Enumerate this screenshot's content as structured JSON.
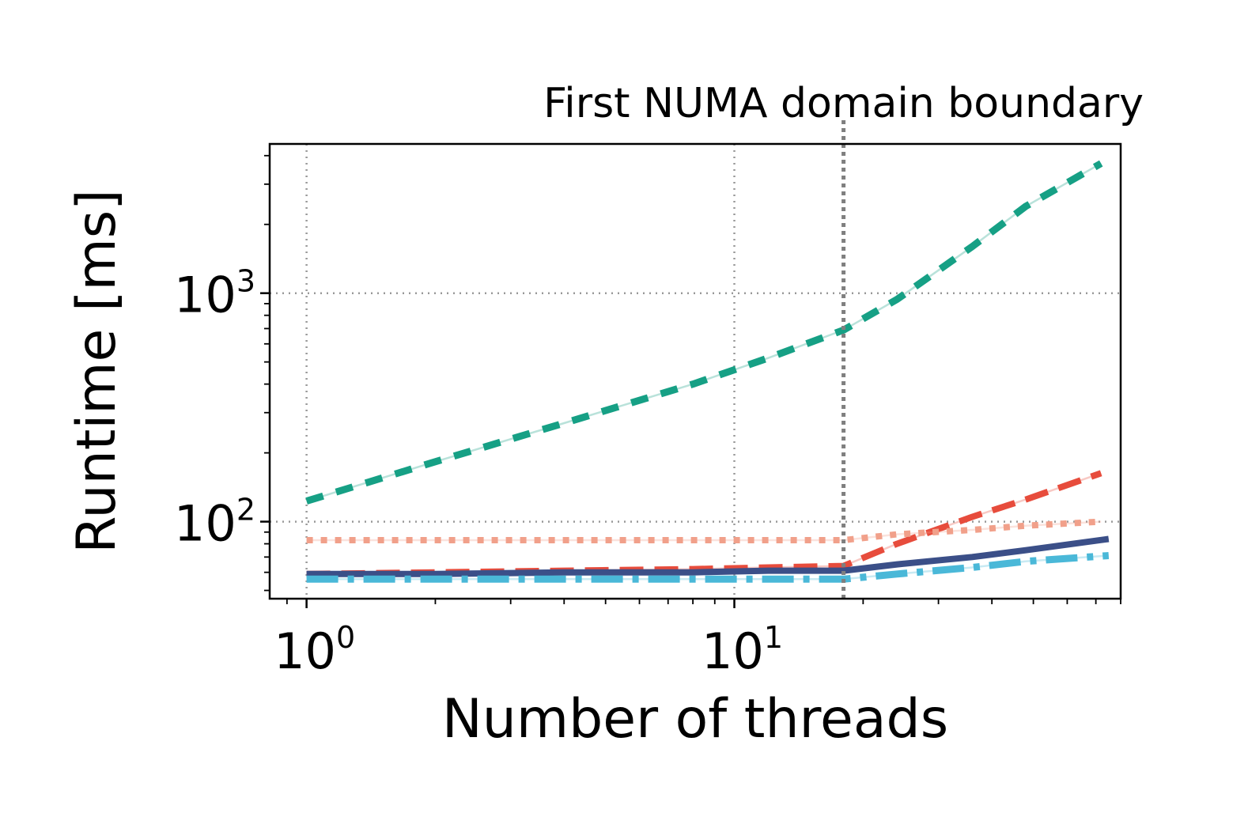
{
  "chart_data": {
    "type": "line",
    "title": "",
    "xlabel": "Number of threads",
    "ylabel": "Runtime [ms]",
    "x_scale": "log",
    "y_scale": "log",
    "xlim": [
      0.82,
      80
    ],
    "ylim": [
      46,
      4500
    ],
    "grid": true,
    "x_ticks": [
      {
        "base": "10",
        "exp": "0",
        "value": 1
      },
      {
        "base": "10",
        "exp": "1",
        "value": 10
      }
    ],
    "y_ticks": [
      {
        "base": "10",
        "exp": "2",
        "value": 100
      },
      {
        "base": "10",
        "exp": "3",
        "value": 1000
      }
    ],
    "annotation": {
      "text": "First NUMA domain boundary",
      "x": 18
    },
    "series": [
      {
        "color": "#16a085",
        "style": "dashed-thick",
        "x": [
          1,
          2,
          4,
          8,
          12,
          18,
          24,
          36,
          48,
          72
        ],
        "y": [
          123,
          183,
          270,
          400,
          520,
          690,
          940,
          1600,
          2400,
          3700
        ]
      },
      {
        "color": "#e74c3c",
        "style": "dashed",
        "x": [
          1,
          2,
          4,
          8,
          12,
          18,
          24,
          36,
          48,
          72
        ],
        "y": [
          59,
          60,
          61,
          62,
          63,
          64,
          80,
          105,
          125,
          163
        ]
      },
      {
        "color": "#f1a08a",
        "style": "dotted",
        "x": [
          1,
          2,
          4,
          8,
          12,
          18,
          24,
          36,
          48,
          72
        ],
        "y": [
          83,
          83,
          83,
          83,
          83,
          83,
          88,
          92,
          96,
          100
        ]
      },
      {
        "color": "#3b4f88",
        "style": "solid",
        "x": [
          1,
          2,
          4,
          8,
          12,
          18,
          24,
          36,
          48,
          75
        ],
        "y": [
          59,
          59,
          60,
          60,
          61,
          61,
          65,
          70,
          75,
          84
        ]
      },
      {
        "color": "#4ab8d8",
        "style": "dashdot",
        "x": [
          1,
          2,
          4,
          8,
          12,
          18,
          24,
          36,
          48,
          75
        ],
        "y": [
          56,
          56,
          56,
          56,
          56,
          56,
          59,
          63,
          67,
          71
        ]
      }
    ]
  }
}
